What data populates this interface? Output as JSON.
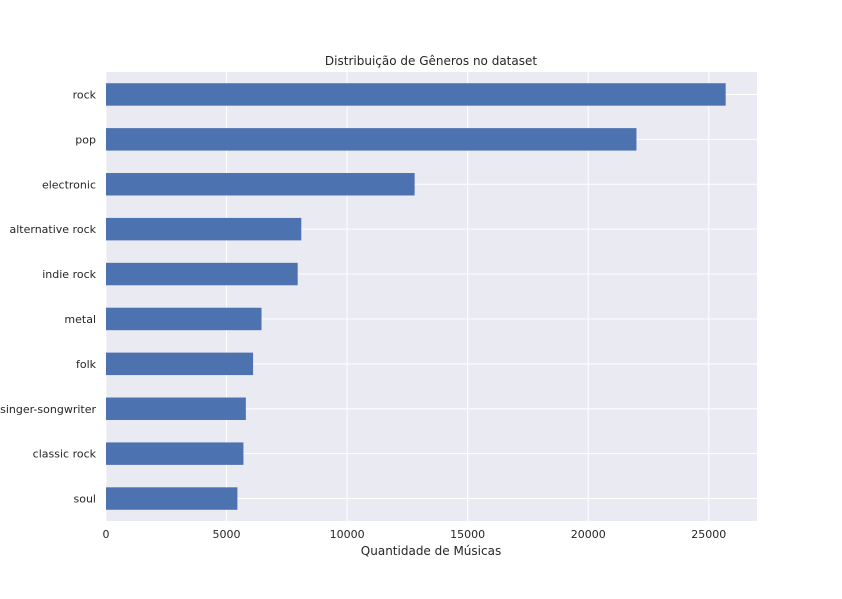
{
  "chart_data": {
    "type": "bar",
    "orientation": "horizontal",
    "title": "Distribuição de Gêneros no dataset",
    "xlabel": "Quantidade de Músicas",
    "ylabel": "",
    "categories": [
      "rock",
      "pop",
      "electronic",
      "alternative rock",
      "indie rock",
      "metal",
      "folk",
      "singer-songwriter",
      "classic rock",
      "soul"
    ],
    "values": [
      25700,
      22000,
      12800,
      8100,
      7950,
      6450,
      6100,
      5800,
      5700,
      5450
    ],
    "xlim": [
      0,
      27000
    ],
    "xticks": [
      0,
      5000,
      10000,
      15000,
      20000,
      25000
    ],
    "grid": true,
    "legend": "none",
    "colors": {
      "bar": "#4c72b0",
      "plot_background": "#eaeaf2",
      "grid": "#ffffff",
      "text": "#262626"
    }
  }
}
